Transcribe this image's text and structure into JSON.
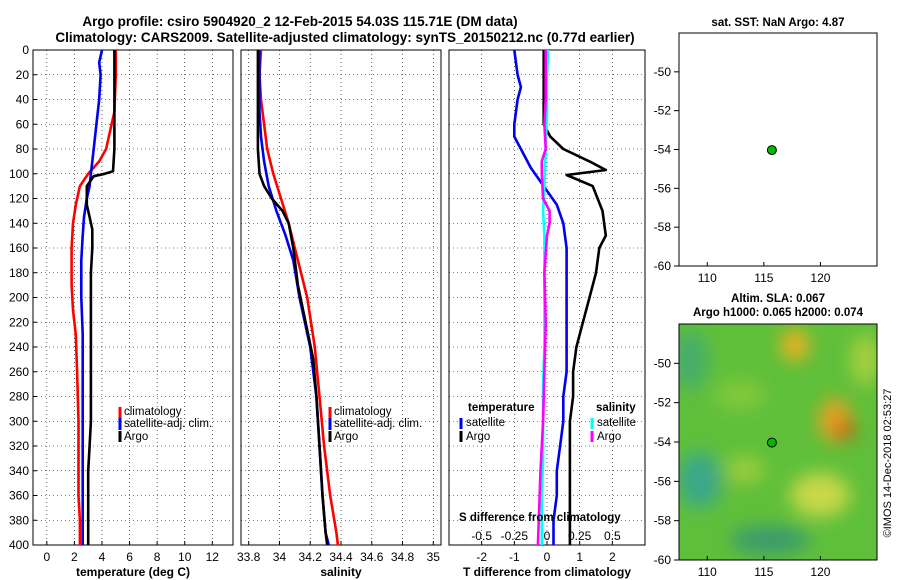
{
  "title_line1": "Argo profile: csiro 5904920_2 12-Feb-2015 54.03S 115.71E (DM data)",
  "title_line2": "Climatology: CARS2009. Satellite-adjusted climatology: synTS_20150212.nc (0.77d earlier)",
  "sst_title": "sat. SST: NaN Argo: 4.87",
  "sla_title": "Altim. SLA: 0.067",
  "argo_h_title": "Argo h1000: 0.065 h2000: 0.074",
  "watermark": "©IMOS 14-Dec-2018 02:53:27",
  "colors": {
    "climatology": "#ff0000",
    "satellite": "#0000ee",
    "argo": "#000000",
    "s_satellite": "#00ffff",
    "s_argo": "#ff00ff"
  },
  "chart_data": [
    {
      "type": "line",
      "name": "temperature",
      "xlabel": "temperature (deg C)",
      "xlim": [
        -1,
        13.5
      ],
      "ylim": [
        400,
        0
      ],
      "xticks": [
        "0",
        "2",
        "4",
        "6",
        "8",
        "10",
        "12"
      ],
      "yticks": [
        "0",
        "20",
        "40",
        "60",
        "80",
        "100",
        "120",
        "140",
        "160",
        "180",
        "200",
        "220",
        "240",
        "260",
        "280",
        "300",
        "320",
        "340",
        "360",
        "380",
        "400"
      ],
      "legend": [
        "climatology",
        "satellite-adj. clim.",
        "Argo"
      ],
      "series": [
        {
          "name": "climatology",
          "x": [
            5.0,
            5.0,
            4.9,
            4.7,
            4.3,
            3.8,
            3.0,
            2.4,
            2.1,
            1.9,
            1.8,
            1.8,
            1.9,
            2.1,
            2.2,
            2.3,
            2.3,
            2.3,
            2.3,
            2.4,
            2.4,
            2.4
          ],
          "y": [
            0,
            20,
            50,
            60,
            80,
            90,
            100,
            110,
            125,
            140,
            160,
            190,
            210,
            230,
            260,
            300,
            320,
            340,
            360,
            380,
            390,
            400
          ]
        },
        {
          "name": "satellite",
          "x": [
            4.0,
            3.8,
            3.9,
            3.8,
            3.6,
            3.4,
            3.2,
            3.1,
            2.9,
            2.7,
            2.6,
            2.5,
            2.5,
            2.6,
            2.6,
            2.6,
            2.6,
            2.6,
            2.6,
            2.6,
            2.6
          ],
          "y": [
            0,
            10,
            20,
            40,
            60,
            80,
            100,
            110,
            120,
            135,
            150,
            170,
            200,
            230,
            260,
            290,
            320,
            340,
            360,
            380,
            400
          ]
        },
        {
          "name": "argo",
          "x": [
            4.9,
            4.9,
            4.9,
            4.9,
            4.9,
            4.8,
            4.2,
            3.4,
            2.9,
            2.9,
            3.1,
            3.3,
            3.3,
            3.2,
            3.2,
            3.2,
            3.2,
            3.2,
            3.2,
            3.1,
            3.0,
            3.0,
            3.0
          ],
          "y": [
            0,
            20,
            40,
            60,
            80,
            98,
            100,
            102,
            110,
            125,
            135,
            145,
            160,
            180,
            200,
            220,
            240,
            260,
            300,
            320,
            340,
            380,
            400
          ]
        }
      ]
    },
    {
      "type": "line",
      "name": "salinity",
      "xlabel": "salinity",
      "xlim": [
        33.75,
        35.05
      ],
      "ylim": [
        400,
        0
      ],
      "xticks": [
        "33.8",
        "34",
        "34.2",
        "34.4",
        "34.6",
        "34.8",
        "35"
      ],
      "legend": [
        "climatology",
        "satellite-adj. clim.",
        "Argo"
      ],
      "series": [
        {
          "name": "climatology",
          "x": [
            33.88,
            33.87,
            33.88,
            33.9,
            33.92,
            33.96,
            34.01,
            34.06,
            34.1,
            34.18,
            34.23,
            34.26,
            34.29,
            34.33,
            34.37,
            34.38
          ],
          "y": [
            0,
            20,
            40,
            60,
            80,
            100,
            120,
            140,
            160,
            200,
            240,
            280,
            320,
            360,
            390,
            400
          ]
        },
        {
          "name": "satellite",
          "x": [
            33.87,
            33.87,
            33.87,
            33.88,
            33.9,
            33.93,
            33.98,
            34.04,
            34.09,
            34.13,
            34.2,
            34.24,
            34.26,
            34.28,
            34.3,
            34.32
          ],
          "y": [
            0,
            20,
            50,
            70,
            90,
            110,
            130,
            150,
            170,
            200,
            240,
            280,
            320,
            360,
            390,
            400
          ]
        },
        {
          "name": "argo",
          "x": [
            33.86,
            33.86,
            33.86,
            33.86,
            33.86,
            33.87,
            33.9,
            33.95,
            34.02,
            34.06,
            34.09,
            34.12,
            34.17,
            34.22,
            34.24,
            34.26,
            34.28,
            34.3,
            34.31
          ],
          "y": [
            0,
            20,
            40,
            60,
            80,
            100,
            110,
            120,
            130,
            140,
            160,
            190,
            220,
            250,
            280,
            320,
            360,
            390,
            400
          ]
        }
      ]
    },
    {
      "type": "line",
      "name": "differences",
      "xlabel": "T difference from climatology",
      "xlabel_top": "S difference from climatology",
      "xlim": [
        -3,
        3
      ],
      "ylim": [
        400,
        0
      ],
      "xticks": [
        "-2",
        "-1",
        "0",
        "1",
        "2"
      ],
      "xticks_top": [
        "-0.5",
        "-0.25",
        "0",
        "0.25",
        "0.5"
      ],
      "legend_temperature_title": "temperature",
      "legend_salinity_title": "salinity",
      "legend": [
        "satellite",
        "Argo",
        "satellite",
        "Argo"
      ],
      "series": [
        {
          "name": "temperature satellite",
          "x": [
            -1.0,
            -0.9,
            -0.8,
            -0.9,
            -1.0,
            -1.0,
            -0.8,
            -0.5,
            -0.1,
            0.3,
            0.5,
            0.6,
            0.6,
            0.6,
            0.6,
            0.5,
            0.5,
            0.4,
            0.3,
            0.3,
            0.2,
            0.2
          ],
          "y": [
            0,
            20,
            30,
            40,
            60,
            70,
            80,
            95,
            110,
            125,
            140,
            160,
            200,
            240,
            260,
            280,
            300,
            320,
            340,
            360,
            380,
            400
          ]
        },
        {
          "name": "temperature argo",
          "x": [
            -0.1,
            -0.1,
            -0.1,
            0.1,
            0.5,
            1.3,
            1.8,
            0.6,
            1.4,
            1.7,
            1.8,
            1.6,
            1.5,
            1.3,
            1.1,
            0.9,
            0.8,
            0.8,
            0.7,
            0.7,
            0.7,
            0.7,
            0.7
          ],
          "y": [
            0,
            20,
            60,
            70,
            80,
            90,
            97,
            101,
            110,
            130,
            150,
            160,
            180,
            200,
            220,
            240,
            260,
            280,
            300,
            320,
            340,
            380,
            400
          ]
        },
        {
          "name": "salinity satellite",
          "x": [
            0.01,
            0.0,
            0.0,
            -0.01,
            -0.02,
            -0.03,
            -0.02,
            -0.02,
            -0.02,
            -0.02,
            -0.03,
            -0.03,
            -0.03,
            -0.04,
            -0.04,
            -0.04
          ],
          "y": [
            0,
            20,
            50,
            80,
            110,
            130,
            150,
            180,
            210,
            240,
            270,
            300,
            330,
            360,
            380,
            400
          ]
        },
        {
          "name": "salinity argo",
          "x": [
            -0.01,
            -0.01,
            -0.02,
            -0.01,
            -0.04,
            -0.04,
            -0.03,
            0.02,
            0.02,
            0.0,
            -0.02,
            -0.01,
            -0.02,
            -0.03,
            -0.04,
            -0.05,
            -0.06,
            -0.07
          ],
          "y": [
            0,
            40,
            60,
            80,
            90,
            100,
            120,
            130,
            140,
            150,
            180,
            220,
            260,
            300,
            320,
            340,
            370,
            400
          ]
        }
      ]
    },
    {
      "type": "scatter",
      "name": "sst_map",
      "xlim": [
        107.5,
        125
      ],
      "ylim": [
        -60,
        -48
      ],
      "xticks": [
        "110",
        "115",
        "120"
      ],
      "yticks": [
        "-50",
        "-52",
        "-54",
        "-56",
        "-58",
        "-60"
      ],
      "points": [
        {
          "lon": 115.71,
          "lat": -54.03,
          "color": "#00bb00"
        }
      ]
    },
    {
      "type": "heatmap",
      "name": "sla_map",
      "xlim": [
        107.5,
        125
      ],
      "ylim": [
        -60,
        -48
      ],
      "xticks": [
        "110",
        "115",
        "120"
      ],
      "yticks": [
        "-50",
        "-52",
        "-54",
        "-56",
        "-58",
        "-60"
      ],
      "points": [
        {
          "lon": 115.71,
          "lat": -54.03,
          "color": "#00bb00"
        }
      ]
    }
  ]
}
